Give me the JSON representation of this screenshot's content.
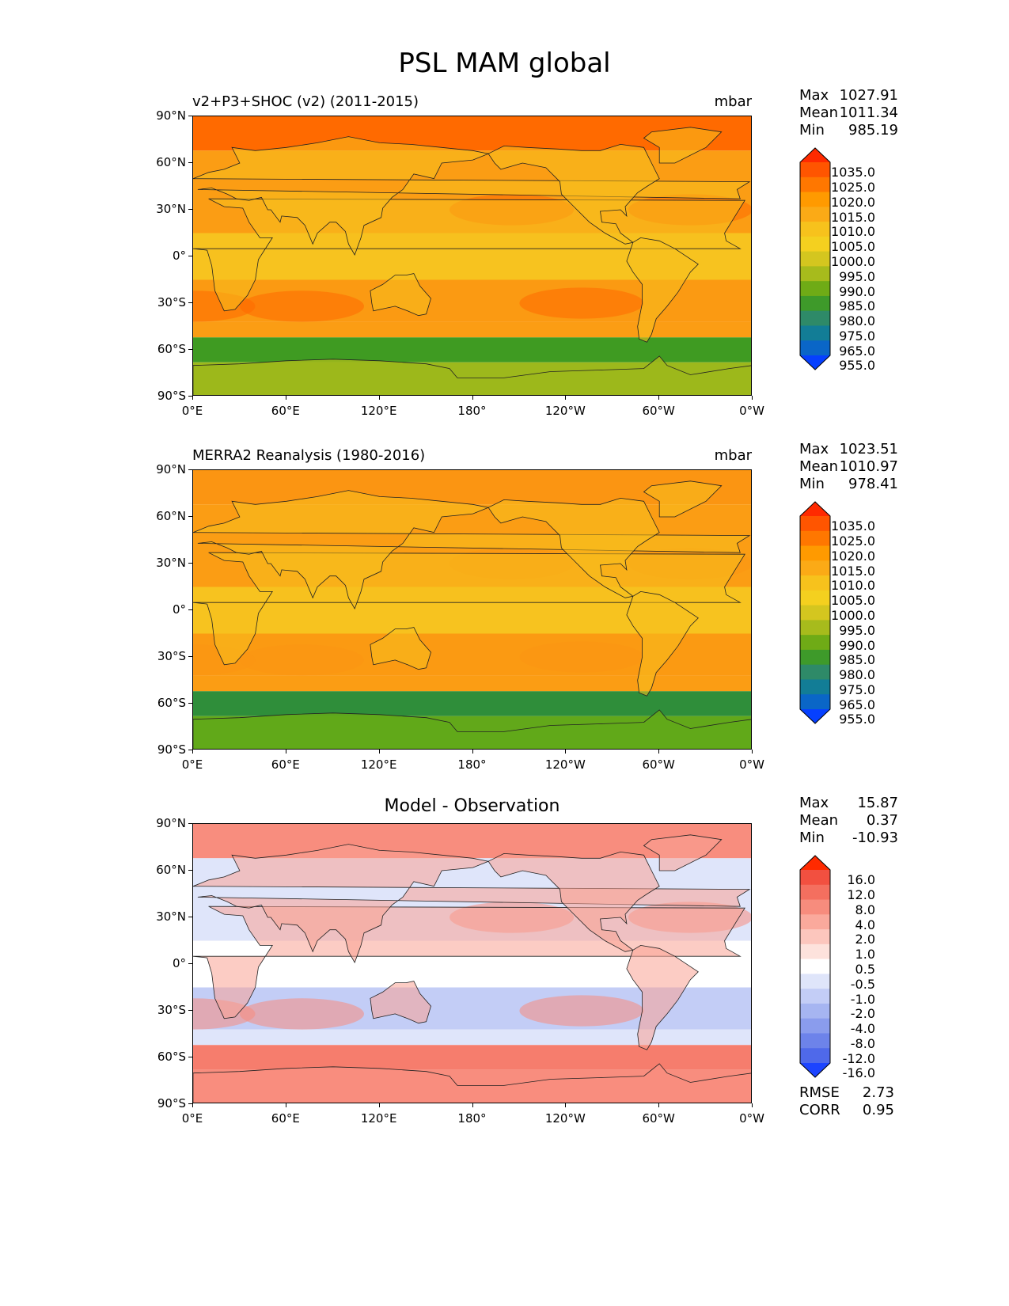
{
  "title": "PSL MAM global",
  "lat_ticks": [
    "90°N",
    "60°N",
    "30°N",
    "0°",
    "30°S",
    "60°S",
    "90°S"
  ],
  "lon_ticks": [
    "0°E",
    "60°E",
    "120°E",
    "180°",
    "120°W",
    "60°W",
    "0°W"
  ],
  "panels": [
    {
      "title": "v2+P3+SHOC (v2) (2011-2015)",
      "units": "mbar",
      "stats": [
        {
          "label": "Max",
          "value": "1027.91"
        },
        {
          "label": "Mean",
          "value": "1011.34"
        },
        {
          "label": "Min",
          "value": "985.19"
        }
      ],
      "colorbar": {
        "labels": [
          "1035.0",
          "1025.0",
          "1020.0",
          "1015.0",
          "1010.0",
          "1005.0",
          "1000.0",
          "995.0",
          "990.0",
          "985.0",
          "980.0",
          "975.0",
          "965.0",
          "955.0"
        ],
        "colors": [
          "#ff2a00",
          "#ff5500",
          "#ff7700",
          "#ff9a00",
          "#fbaa16",
          "#f7c21c",
          "#f4d01f",
          "#d4c61f",
          "#a7bb1c",
          "#6fab16",
          "#3e9a2a",
          "#2e8a68",
          "#127d96",
          "#0a66c7",
          "#0640ff"
        ]
      },
      "map_colors": {
        "north": "#ff6a00",
        "mid": "#fb9d14",
        "tropics": "#f7c31f",
        "south_belt": "#fb9a12",
        "storm_track": "#3f9b22",
        "antarctic": "#9db81c",
        "land": "#f7c01e"
      }
    },
    {
      "title": "MERRA2 Reanalysis (1980-2016)",
      "units": "mbar",
      "stats": [
        {
          "label": "Max",
          "value": "1023.51"
        },
        {
          "label": "Mean",
          "value": "1010.97"
        },
        {
          "label": "Min",
          "value": "978.41"
        }
      ],
      "colorbar": {
        "labels": [
          "1035.0",
          "1025.0",
          "1020.0",
          "1015.0",
          "1010.0",
          "1005.0",
          "1000.0",
          "995.0",
          "990.0",
          "985.0",
          "980.0",
          "975.0",
          "965.0",
          "955.0"
        ],
        "colors": [
          "#ff2a00",
          "#ff5500",
          "#ff7700",
          "#ff9a00",
          "#fbaa16",
          "#f7c21c",
          "#f4d01f",
          "#d4c61f",
          "#a7bb1c",
          "#6fab16",
          "#3e9a2a",
          "#2e8a68",
          "#127d96",
          "#0a66c7",
          "#0640ff"
        ]
      },
      "map_colors": {
        "north": "#fb9512",
        "mid": "#fb9d14",
        "tropics": "#f7c31f",
        "south_belt": "#fb9a12",
        "storm_track": "#2f8e3a",
        "antarctic": "#62a81a",
        "land": "#f7c01e"
      }
    },
    {
      "title": "Model - Observation",
      "units": "",
      "stats": [
        {
          "label": "Max",
          "value": "15.87"
        },
        {
          "label": "Mean",
          "value": "0.37"
        },
        {
          "label": "Min",
          "value": "-10.93"
        }
      ],
      "extra_stats": [
        {
          "label": "RMSE",
          "value": "2.73"
        },
        {
          "label": "CORR",
          "value": "0.95"
        }
      ],
      "colorbar": {
        "labels": [
          "16.0",
          "12.0",
          "8.0",
          "4.0",
          "2.0",
          "1.0",
          "0.5",
          "-0.5",
          "-1.0",
          "-2.0",
          "-4.0",
          "-8.0",
          "-12.0",
          "-16.0"
        ],
        "colors": [
          "#ff2a00",
          "#f25040",
          "#f46f5f",
          "#f78c7d",
          "#faa99c",
          "#fcc6bd",
          "#fde2dc",
          "#ffffff",
          "#dfe5fa",
          "#c3cdf6",
          "#a6b5f1",
          "#8a9ced",
          "#6d83ea",
          "#4f69ea",
          "#1c44ff"
        ]
      },
      "map_colors": {
        "north": "#f88d7e",
        "mid": "#dfe5fa",
        "tropics": "#ffffff",
        "south_belt": "#c3cdf6",
        "storm_track": "#f67d6d",
        "antarctic": "#f88d7e",
        "land": "#f9a293"
      }
    }
  ]
}
